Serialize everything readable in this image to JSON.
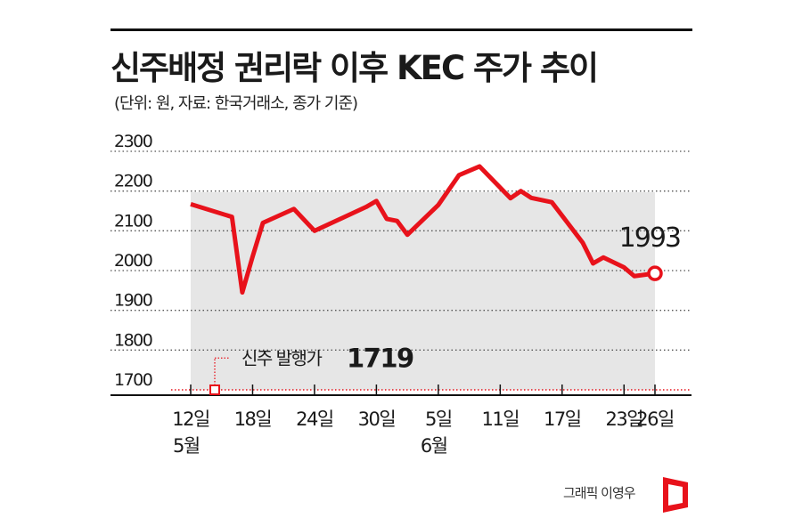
{
  "title": "신주배정 권리락 이후 KEC 주가 추이",
  "subtitle": "(단위: 원, 자료: 한국거래소, 종가 기준)",
  "credit": "그래픽 이영우",
  "colors": {
    "line": "#e8121b",
    "area": "#e6e6e6",
    "grid": "#555555",
    "text": "#1a1a1a"
  },
  "chart_data": {
    "type": "area",
    "ylim": [
      1700,
      2300
    ],
    "yticks": [
      1700,
      1800,
      1900,
      2000,
      2100,
      2200,
      2300
    ],
    "grid": true,
    "xtick_labels": [
      "12일",
      "18일",
      "24일",
      "30일",
      "5일",
      "11일",
      "17일",
      "23일",
      "26일"
    ],
    "month_labels": [
      {
        "text": "5월",
        "under": "12일"
      },
      {
        "text": "6월",
        "under": "5일"
      }
    ],
    "series": [
      {
        "type": "line",
        "points": [
          {
            "x": "5/12",
            "y": 2167
          },
          {
            "x": "5/16",
            "y": 2135
          },
          {
            "x": "5/17",
            "y": 1945
          },
          {
            "x": "5/18",
            "y": 2035
          },
          {
            "x": "5/19",
            "y": 2120
          },
          {
            "x": "5/22",
            "y": 2155
          },
          {
            "x": "5/24",
            "y": 2100
          },
          {
            "x": "5/29",
            "y": 2160
          },
          {
            "x": "5/30",
            "y": 2175
          },
          {
            "x": "5/31",
            "y": 2130
          },
          {
            "x": "6/1",
            "y": 2125
          },
          {
            "x": "6/2",
            "y": 2090
          },
          {
            "x": "6/5",
            "y": 2165
          },
          {
            "x": "6/7",
            "y": 2240
          },
          {
            "x": "6/9",
            "y": 2262
          },
          {
            "x": "6/12",
            "y": 2182
          },
          {
            "x": "6/13",
            "y": 2200
          },
          {
            "x": "6/14",
            "y": 2183
          },
          {
            "x": "6/16",
            "y": 2172
          },
          {
            "x": "6/19",
            "y": 2070
          },
          {
            "x": "6/20",
            "y": 2018
          },
          {
            "x": "6/21",
            "y": 2033
          },
          {
            "x": "6/23",
            "y": 2008
          },
          {
            "x": "6/24",
            "y": 1986
          },
          {
            "x": "6/26",
            "y": 1993
          }
        ]
      }
    ],
    "annotations": [
      {
        "label": "1993",
        "value": 1993,
        "x": "6/26",
        "text": "1993"
      },
      {
        "label": "신주 발행가",
        "value_text": "1719",
        "value": 1719
      }
    ]
  }
}
